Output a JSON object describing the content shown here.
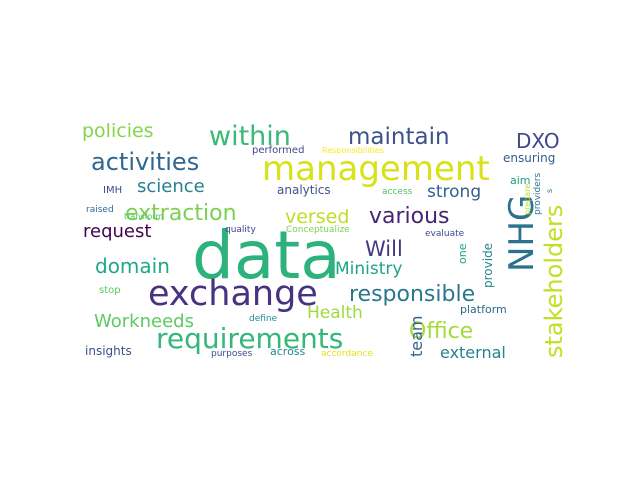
{
  "words": [
    {
      "text": "data",
      "color": "#2db27d"
    },
    {
      "text": "management",
      "color": "#d8e219"
    },
    {
      "text": "exchange",
      "color": "#463480"
    },
    {
      "text": "requirements",
      "color": "#35b779"
    },
    {
      "text": "stakeholders",
      "color": "#c2df23"
    },
    {
      "text": "NHG",
      "color": "#2c728e"
    },
    {
      "text": "within",
      "color": "#3aba76"
    },
    {
      "text": "maintain",
      "color": "#3b528b"
    },
    {
      "text": "activities",
      "color": "#31668e"
    },
    {
      "text": "policies",
      "color": "#86d549"
    },
    {
      "text": "extraction",
      "color": "#7ad151"
    },
    {
      "text": "various",
      "color": "#482475"
    },
    {
      "text": "responsible",
      "color": "#2a788e"
    },
    {
      "text": "Office",
      "color": "#a5db36"
    },
    {
      "text": "DXO",
      "color": "#3f4788"
    },
    {
      "text": "science",
      "color": "#27808e"
    },
    {
      "text": "strong",
      "color": "#355f8d"
    },
    {
      "text": "versed",
      "color": "#bddf26"
    },
    {
      "text": "request",
      "color": "#440154"
    },
    {
      "text": "Will",
      "color": "#453781"
    },
    {
      "text": "domain",
      "color": "#22a884"
    },
    {
      "text": "Ministry",
      "color": "#20a386"
    },
    {
      "text": "Workneeds",
      "color": "#5ec962"
    },
    {
      "text": "Health",
      "color": "#a0da39"
    },
    {
      "text": "external",
      "color": "#26828e"
    },
    {
      "text": "team",
      "color": "#33638d"
    },
    {
      "text": "ensuring",
      "color": "#365c8d"
    },
    {
      "text": "performed",
      "color": "#3f4889"
    },
    {
      "text": "Responsibilities",
      "color": "#fde725"
    },
    {
      "text": "IMH",
      "color": "#3e4a89"
    },
    {
      "text": "analytics",
      "color": "#3b528b"
    },
    {
      "text": "access",
      "color": "#4ec36b"
    },
    {
      "text": "aim",
      "color": "#1f9e89"
    },
    {
      "text": "providers",
      "color": "#2a788e"
    },
    {
      "text": "prepare",
      "color": "#b5de2b"
    },
    {
      "text": "raised",
      "color": "#31688e"
    },
    {
      "text": "transform",
      "color": "#52c569"
    },
    {
      "text": "quality",
      "color": "#414487"
    },
    {
      "text": "Conceptualize",
      "color": "#7ad151"
    },
    {
      "text": "evaluate",
      "color": "#3e4989"
    },
    {
      "text": "one",
      "color": "#1fa088"
    },
    {
      "text": "provide",
      "color": "#25848e"
    },
    {
      "text": "stop",
      "color": "#5ec962"
    },
    {
      "text": "define",
      "color": "#218e8d"
    },
    {
      "text": "platform",
      "color": "#31688e"
    },
    {
      "text": "insights",
      "color": "#3b528b"
    },
    {
      "text": "purposes",
      "color": "#3e4a89"
    },
    {
      "text": "across",
      "color": "#24868e"
    },
    {
      "text": "accordance",
      "color": "#e5e419"
    },
    {
      "text": "s",
      "color": "#2a788e"
    }
  ]
}
